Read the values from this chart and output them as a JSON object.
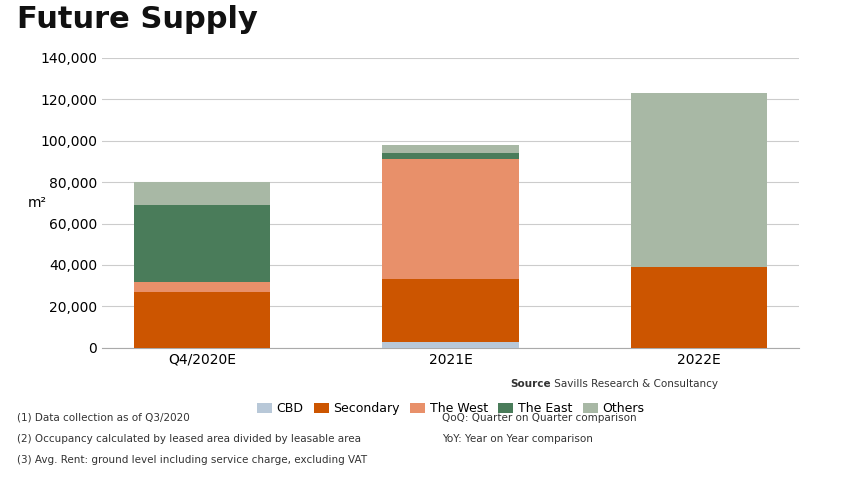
{
  "title": "Future Supply",
  "categories": [
    "Q4/2020E",
    "2021E",
    "2022E"
  ],
  "series": {
    "CBD": [
      0,
      3000,
      0
    ],
    "Secondary": [
      27000,
      30000,
      39000
    ],
    "The West": [
      5000,
      58000,
      0
    ],
    "The East": [
      37000,
      3000,
      0
    ],
    "Others": [
      11000,
      4000,
      84000
    ]
  },
  "colors": {
    "CBD": "#b8c8d8",
    "Secondary": "#cc5500",
    "The West": "#e8906a",
    "The East": "#4a7c5a",
    "Others": "#a8b8a5"
  },
  "ylabel": "m²",
  "ylim": [
    0,
    140000
  ],
  "yticks": [
    0,
    20000,
    40000,
    60000,
    80000,
    100000,
    120000,
    140000
  ],
  "background_color": "#ffffff",
  "grid_color": "#cccccc",
  "bar_width": 0.55,
  "title_fontsize": 22,
  "axis_fontsize": 10,
  "legend_fontsize": 9,
  "source_bold": "Source",
  "source_normal": " Savills Research & Consultancy",
  "footnotes": [
    "(1) Data collection as of Q3/2020",
    "(2) Occupancy calculated by leased area divided by leasable area",
    "(3) Avg. Rent: ground level including service charge, excluding VAT"
  ],
  "side_notes": [
    "QoQ: Quarter on Quarter comparison",
    "YoY: Year on Year comparison"
  ]
}
